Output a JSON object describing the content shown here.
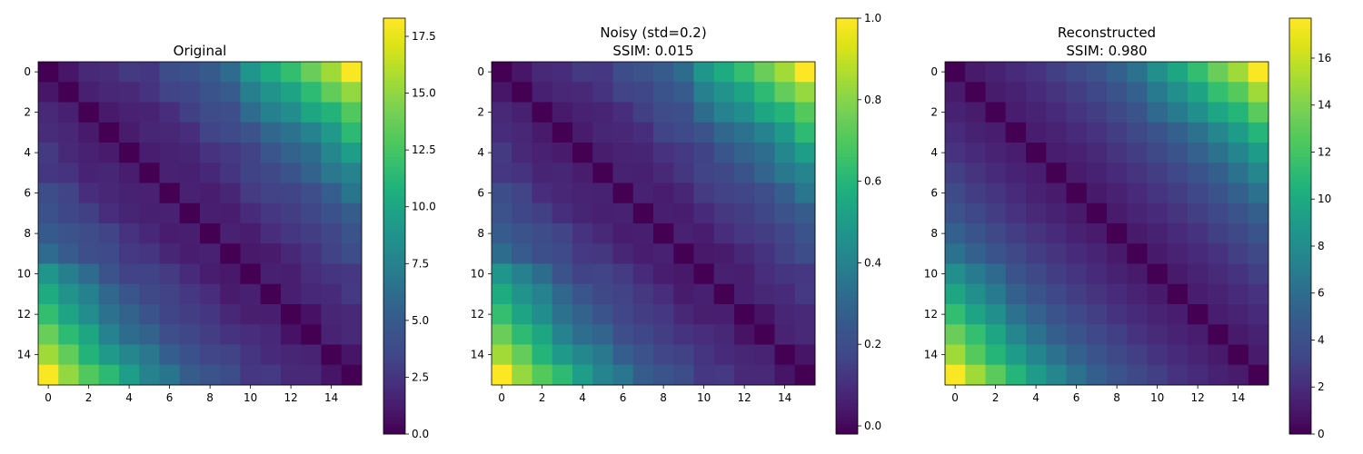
{
  "chart_data": [
    {
      "type": "heatmap",
      "title_lines": [
        "Original"
      ],
      "size": 16,
      "colormap": "viridis",
      "xticks": [
        "0",
        "2",
        "4",
        "6",
        "8",
        "10",
        "12",
        "14"
      ],
      "yticks": [
        "0",
        "2",
        "4",
        "6",
        "8",
        "10",
        "12",
        "14"
      ],
      "xtick_values": [
        0,
        2,
        4,
        6,
        8,
        10,
        12,
        14
      ],
      "ytick_values": [
        0,
        2,
        4,
        6,
        8,
        10,
        12,
        14
      ],
      "colorbar_range": [
        0,
        18.3
      ],
      "colorbar_ticks": [
        "0.0",
        "2.5",
        "5.0",
        "7.5",
        "10.0",
        "12.5",
        "15.0",
        "17.5"
      ],
      "colorbar_tick_values": [
        0,
        2.5,
        5.0,
        7.5,
        10.0,
        12.5,
        15.0,
        17.5
      ],
      "noise_amplitude": 1.4,
      "noise_seed": 7,
      "normalize": false
    },
    {
      "type": "heatmap",
      "title_lines": [
        "Noisy (std=0.2)",
        "SSIM: 0.015"
      ],
      "size": 16,
      "colormap": "viridis",
      "xticks": [
        "0",
        "2",
        "4",
        "6",
        "8",
        "10",
        "12",
        "14"
      ],
      "yticks": [
        "0",
        "2",
        "4",
        "6",
        "8",
        "10",
        "12",
        "14"
      ],
      "xtick_values": [
        0,
        2,
        4,
        6,
        8,
        10,
        12,
        14
      ],
      "ytick_values": [
        0,
        2,
        4,
        6,
        8,
        10,
        12,
        14
      ],
      "colorbar_range": [
        -0.02,
        1.0
      ],
      "colorbar_ticks": [
        "0.0",
        "0.2",
        "0.4",
        "0.6",
        "0.8",
        "1.0"
      ],
      "colorbar_tick_values": [
        0.0,
        0.2,
        0.4,
        0.6,
        0.8,
        1.0
      ],
      "noise_amplitude": 1.4,
      "noise_seed": 7,
      "normalize": true
    },
    {
      "type": "heatmap",
      "title_lines": [
        "Reconstructed",
        "SSIM: 0.980"
      ],
      "size": 16,
      "colormap": "viridis",
      "xticks": [
        "0",
        "2",
        "4",
        "6",
        "8",
        "10",
        "12",
        "14"
      ],
      "yticks": [
        "0",
        "2",
        "4",
        "6",
        "8",
        "10",
        "12",
        "14"
      ],
      "xtick_values": [
        0,
        2,
        4,
        6,
        8,
        10,
        12,
        14
      ],
      "ytick_values": [
        0,
        2,
        4,
        6,
        8,
        10,
        12,
        14
      ],
      "colorbar_range": [
        0,
        17.7
      ],
      "colorbar_ticks": [
        "0",
        "2",
        "4",
        "6",
        "8",
        "10",
        "12",
        "14",
        "16"
      ],
      "colorbar_tick_values": [
        0,
        2,
        4,
        6,
        8,
        10,
        12,
        14,
        16
      ],
      "noise_amplitude": 0.25,
      "noise_seed": 11,
      "normalize": false
    }
  ]
}
